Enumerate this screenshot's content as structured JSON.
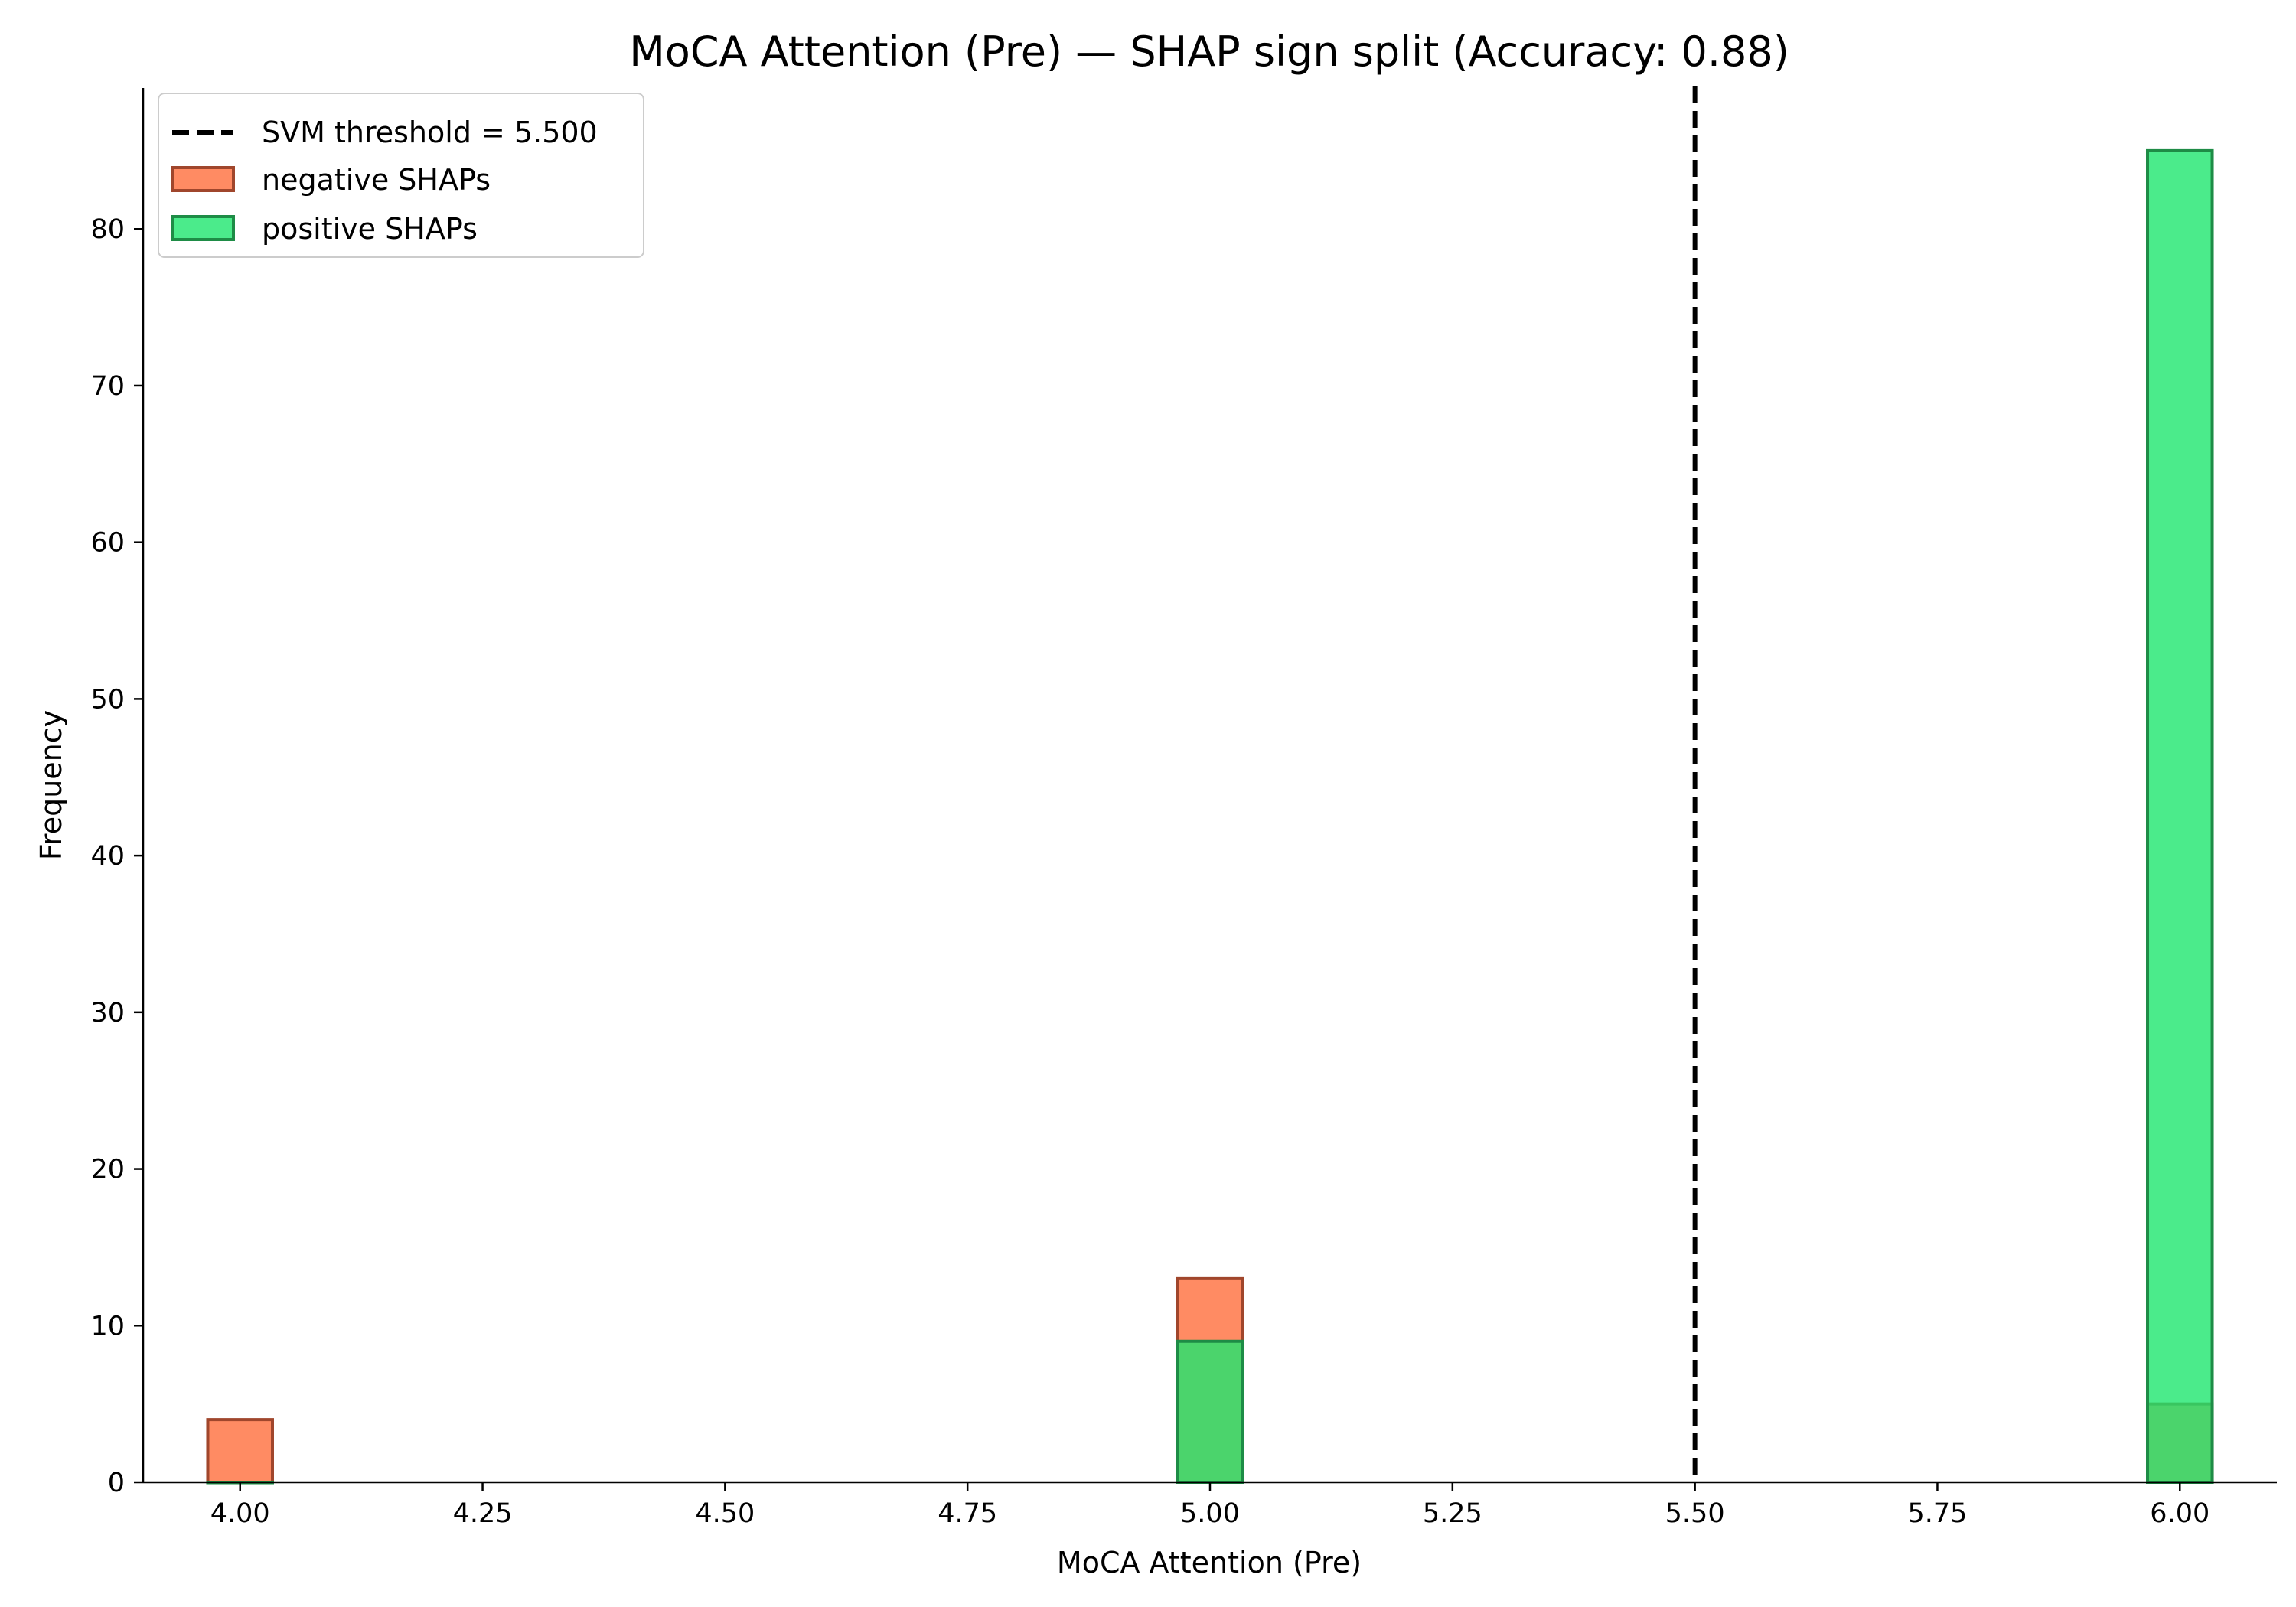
{
  "chart_data": {
    "type": "bar",
    "title": "MoCA Attention (Pre) — SHAP sign split (Accuracy: 0.88)",
    "xlabel": "MoCA Attention (Pre)",
    "ylabel": "Frequency",
    "xlim": [
      3.9,
      6.1
    ],
    "ylim": [
      0,
      89
    ],
    "xticks": [
      4.0,
      4.25,
      4.5,
      4.75,
      5.0,
      5.25,
      5.5,
      5.75,
      6.0
    ],
    "xtick_labels": [
      "4.00",
      "4.25",
      "4.50",
      "4.75",
      "5.00",
      "5.25",
      "5.50",
      "5.75",
      "6.00"
    ],
    "yticks": [
      0,
      10,
      20,
      30,
      40,
      50,
      60,
      70,
      80
    ],
    "ytick_labels": [
      "0",
      "10",
      "20",
      "30",
      "40",
      "50",
      "60",
      "70",
      "80"
    ],
    "bin_width": 0.0667,
    "series": [
      {
        "name": "negative SHAPs",
        "fill": "#ff6e3c",
        "edge": "#a0462c",
        "bins": [
          {
            "x": 4.0,
            "value": 4
          },
          {
            "x": 5.0,
            "value": 13
          },
          {
            "x": 6.0,
            "value": 5
          }
        ]
      },
      {
        "name": "positive SHAPs",
        "fill": "#1ee66e",
        "edge": "#1e8c46",
        "bins": [
          {
            "x": 4.0,
            "value": 0
          },
          {
            "x": 5.0,
            "value": 9
          },
          {
            "x": 6.0,
            "value": 85
          }
        ]
      }
    ],
    "threshold": {
      "name": "SVM threshold = 5.500",
      "value": 5.5,
      "color": "#000000",
      "style": "dashed"
    },
    "legend_position": "top-left",
    "grid": false
  }
}
